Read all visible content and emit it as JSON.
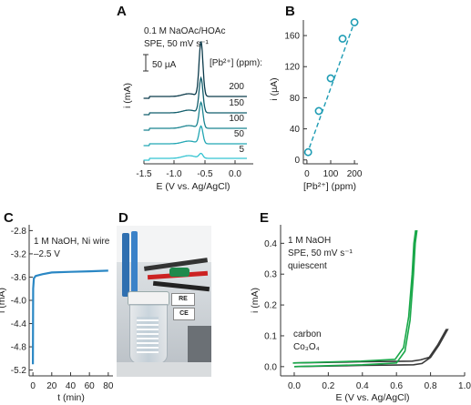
{
  "panels": {
    "A": {
      "letter": "A",
      "note_line1": "0.1 M NaOAc/HOAc",
      "note_line2": "SPE, 50 mV s⁻¹",
      "scale_bar_label": "50 µA",
      "legend_title": "[Pb²⁺] (ppm):",
      "trace_labels": [
        "200",
        "150",
        "100",
        "50",
        "5"
      ],
      "ylabel": "i (mA)",
      "xlabel": "E (V vs. Ag/AgCl)",
      "xticks": [
        "-1.5",
        "-1.0",
        "-0.5",
        "0.0"
      ]
    },
    "B": {
      "letter": "B",
      "ylabel": "i (µA)",
      "xlabel": "[Pb²⁺] (ppm)",
      "xticks": [
        "0",
        "100",
        "200"
      ],
      "yticks": [
        "0",
        "40",
        "80",
        "120",
        "160"
      ]
    },
    "C": {
      "letter": "C",
      "note_line1": "1 M NaOH, Ni wire",
      "note_line2": "–2.5 V",
      "ylabel": "i (mA)",
      "xlabel": "t (min)",
      "xticks": [
        "0",
        "20",
        "40",
        "60",
        "80"
      ],
      "yticks": [
        "-2.8",
        "-3.2",
        "-3.6",
        "-4.0",
        "-4.4",
        "-4.8",
        "-5.2"
      ]
    },
    "D": {
      "letter": "D",
      "electrode_labels": [
        "RE",
        "CE"
      ]
    },
    "E": {
      "letter": "E",
      "note_line1": "1 M NaOH",
      "note_line2": "SPE, 50 mV s⁻¹",
      "note_line3": "quiescent",
      "legend_carbon": "carbon",
      "legend_co3o4": "Co₃O₄",
      "ylabel": "i (mA)",
      "xlabel": "E (V vs. Ag/AgCl)",
      "xticks": [
        "0.0",
        "0.2",
        "0.4",
        "0.6",
        "0.8",
        "1.0"
      ],
      "yticks": [
        "0.0",
        "0.1",
        "0.2",
        "0.3",
        "0.4"
      ]
    }
  },
  "colors": {
    "trace_200": "#0b3a4a",
    "trace_150": "#125e6c",
    "trace_100": "#1b8591",
    "trace_50": "#22a6b3",
    "trace_5": "#35c4d2",
    "calibration": "#1e9cb4",
    "chrono": "#2a87c4",
    "carbon": "#3a3a3a",
    "co3o4": "#1aa84a"
  },
  "chart_data": [
    {
      "panel": "A",
      "type": "line",
      "title": "",
      "xlabel": "E (V vs. Ag/AgCl)",
      "ylabel": "i (mA)",
      "xlim": [
        -1.6,
        0.3
      ],
      "series": [
        {
          "name": "200",
          "peak_x": -0.55
        },
        {
          "name": "150",
          "peak_x": -0.55
        },
        {
          "name": "100",
          "peak_x": -0.55
        },
        {
          "name": "50",
          "peak_x": -0.55
        },
        {
          "name": "5",
          "peak_x": -0.55
        }
      ]
    },
    {
      "panel": "B",
      "type": "scatter",
      "title": "",
      "xlabel": "[Pb²⁺] (ppm)",
      "ylabel": "i (µA)",
      "xlim": [
        -15,
        215
      ],
      "ylim": [
        -5,
        180
      ],
      "series": [
        {
          "x": [
            5,
            50,
            100,
            150,
            200
          ],
          "y": [
            10,
            63,
            105,
            156,
            177
          ]
        }
      ],
      "fit_line": {
        "x": [
          0,
          205
        ],
        "y": [
          7,
          182
        ]
      }
    },
    {
      "panel": "C",
      "type": "line",
      "title": "",
      "xlabel": "t (min)",
      "ylabel": "i (mA)",
      "xlim": [
        -4,
        85
      ],
      "ylim": [
        -5.3,
        -2.7
      ],
      "series": [
        {
          "x": [
            0,
            0.3,
            1,
            3,
            10,
            20,
            40,
            60,
            80
          ],
          "y": [
            -5.1,
            -3.8,
            -3.62,
            -3.58,
            -3.55,
            -3.52,
            -3.51,
            -3.5,
            -3.49
          ]
        }
      ]
    },
    {
      "panel": "E",
      "type": "line",
      "title": "",
      "xlabel": "E (V vs. Ag/AgCl)",
      "ylabel": "i (mA)",
      "xlim": [
        -0.08,
        1.0
      ],
      "ylim": [
        -0.03,
        0.46
      ],
      "series": [
        {
          "name": "carbon",
          "x": [
            0.0,
            0.2,
            0.4,
            0.6,
            0.7,
            0.75,
            0.8,
            0.85,
            0.9
          ],
          "y": [
            0.0,
            0.002,
            0.004,
            0.005,
            0.006,
            0.01,
            0.03,
            0.07,
            0.12
          ]
        },
        {
          "name": "Co₃O₄",
          "x": [
            0.0,
            0.2,
            0.4,
            0.6,
            0.65,
            0.68,
            0.7,
            0.71,
            0.72
          ],
          "y": [
            0.0,
            0.003,
            0.006,
            0.012,
            0.05,
            0.15,
            0.3,
            0.4,
            0.44
          ]
        }
      ]
    }
  ]
}
